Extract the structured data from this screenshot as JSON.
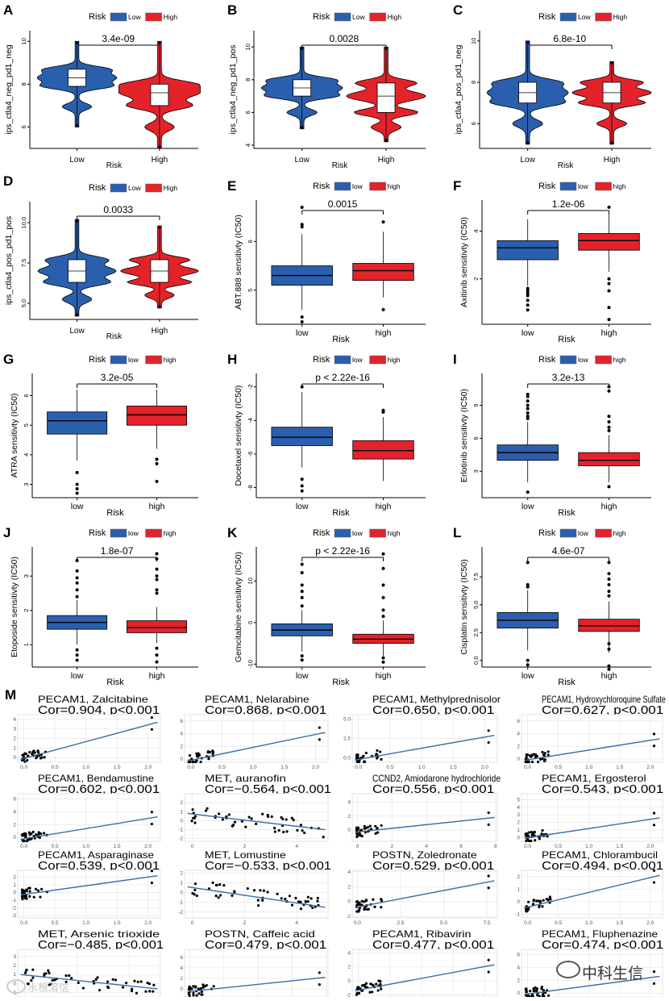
{
  "colors": {
    "low": "#2a5fae",
    "high": "#e3222a",
    "fit": "#3a6ea5",
    "grid": "#e6e6e6",
    "point": "#000000"
  },
  "watermarks": {
    "right": "中科生信",
    "left": "水根溶信"
  },
  "m_label": "M",
  "violin_panels": [
    {
      "letter": "A",
      "legend_title": "Risk",
      "legend_items": [
        "Low",
        "High"
      ],
      "ylabel": "ips_ctla4_neg_pd1_neg",
      "xlabel": "Risk",
      "categories": [
        "Low",
        "High"
      ],
      "pvalue": "3.4e-09",
      "ylim": [
        5,
        10.5
      ],
      "yticks": [
        "6",
        "8",
        "10"
      ],
      "groups": [
        {
          "median": 8.3,
          "q1": 7.9,
          "q3": 8.7,
          "min": 6.0,
          "max": 10.0
        },
        {
          "median": 7.6,
          "q1": 7.0,
          "q3": 8.0,
          "min": 5.0,
          "max": 10.0
        }
      ]
    },
    {
      "letter": "B",
      "legend_title": "Risk",
      "legend_items": [
        "Low",
        "High"
      ],
      "ylabel": "ips_ctla4_neg_pd1_pos",
      "xlabel": "Risk",
      "categories": [
        "Low",
        "High"
      ],
      "pvalue": "0.0028",
      "ylim": [
        3.8,
        11
      ],
      "yticks": [
        "4",
        "6",
        "8",
        "10"
      ],
      "groups": [
        {
          "median": 7.5,
          "q1": 7.0,
          "q3": 8.0,
          "min": 5.0,
          "max": 10.0
        },
        {
          "median": 7.0,
          "q1": 6.0,
          "q3": 7.8,
          "min": 4.2,
          "max": 10.0
        }
      ]
    },
    {
      "letter": "C",
      "legend_title": "Risk",
      "legend_items": [
        "Low",
        "High"
      ],
      "ylabel": "ips_ctla4_pos_pd1_neg",
      "xlabel": "Risk",
      "categories": [
        "Low",
        "High"
      ],
      "pvalue": "6.8e-10",
      "ylim": [
        4.8,
        10.5
      ],
      "yticks": [
        "6",
        "8",
        "10"
      ],
      "groups": [
        {
          "median": 7.5,
          "q1": 7.0,
          "q3": 8.0,
          "min": 5.0,
          "max": 10.0
        },
        {
          "median": 7.5,
          "q1": 7.0,
          "q3": 8.0,
          "min": 5.0,
          "max": 9.0
        }
      ]
    },
    {
      "letter": "D",
      "legend_title": "Risk",
      "legend_items": [
        "Low",
        "High"
      ],
      "ylabel": "ips_ctla4_pos_pd1_pos",
      "xlabel": "Risk",
      "categories": [
        "Low",
        "High"
      ],
      "pvalue": "0.0033",
      "ylim": [
        4.0,
        11.3
      ],
      "yticks": [
        "5.0",
        "7.5",
        "10.0"
      ],
      "groups": [
        {
          "median": 7.0,
          "q1": 6.3,
          "q3": 7.7,
          "min": 4.2,
          "max": 10.2
        },
        {
          "median": 7.0,
          "q1": 6.3,
          "q3": 7.7,
          "min": 4.7,
          "max": 9.8
        }
      ]
    }
  ],
  "box_panels": [
    {
      "letter": "E",
      "legend_title": "Risk",
      "legend_items": [
        "low",
        "high"
      ],
      "ylabel": "ABT.888 sensitivty (IC50)",
      "xlabel": "Risk",
      "categories": [
        "low",
        "high"
      ],
      "pvalue": "0.0015",
      "ylim": [
        4.3,
        6.85
      ],
      "yticks": [
        5,
        6
      ],
      "groups": [
        {
          "min": 4.6,
          "q1": 5.1,
          "median": 5.3,
          "q3": 5.5,
          "max": 6.15,
          "outliers": [
            4.35,
            4.45,
            6.3,
            6.35,
            6.7
          ]
        },
        {
          "min": 4.85,
          "q1": 5.2,
          "median": 5.4,
          "q3": 5.55,
          "max": 6.2,
          "outliers": [
            4.6,
            6.4
          ]
        }
      ]
    },
    {
      "letter": "F",
      "legend_title": "Risk",
      "legend_items": [
        "low",
        "high"
      ],
      "ylabel": "Axitinib sensitivty (IC50)",
      "xlabel": "Risk",
      "categories": [
        "low",
        "high"
      ],
      "pvalue": "1.2e-06",
      "ylim": [
        0.1,
        5.3
      ],
      "yticks": [
        2,
        4
      ],
      "groups": [
        {
          "min": 1.7,
          "q1": 2.8,
          "median": 3.3,
          "q3": 3.6,
          "max": 4.5,
          "outliers": [
            0.7,
            0.9,
            1.1,
            1.3,
            1.4,
            1.5,
            1.6
          ]
        },
        {
          "min": 2.3,
          "q1": 3.2,
          "median": 3.6,
          "q3": 3.9,
          "max": 4.7,
          "outliers": [
            0.3,
            0.8,
            1.5,
            1.8,
            2.0,
            5.0
          ]
        }
      ]
    },
    {
      "letter": "G",
      "legend_title": "Risk",
      "legend_items": [
        "low",
        "high"
      ],
      "ylabel": "ATRA sensitivty (IC50)",
      "xlabel": "Risk",
      "categories": [
        "low",
        "high"
      ],
      "pvalue": "3.2e-05",
      "ylim": [
        2.55,
        6.75
      ],
      "yticks": [
        3,
        4,
        5,
        6
      ],
      "groups": [
        {
          "min": 3.8,
          "q1": 4.7,
          "median": 5.15,
          "q3": 5.45,
          "max": 6.2,
          "outliers": [
            2.7,
            2.85,
            3.0,
            3.4
          ]
        },
        {
          "min": 4.2,
          "q1": 5.0,
          "median": 5.35,
          "q3": 5.65,
          "max": 6.2,
          "outliers": [
            3.1,
            3.7,
            3.85
          ]
        }
      ]
    },
    {
      "letter": "H",
      "legend_title": "Risk",
      "legend_items": [
        "low",
        "high"
      ],
      "ylabel": "Docetaxel sensitivty (IC50)",
      "xlabel": "Risk",
      "categories": [
        "low",
        "high"
      ],
      "pvalue": "p < 2.22e-16",
      "ylim": [
        -8.6,
        -1.2
      ],
      "yticks": [
        -8,
        -6,
        -4,
        -2
      ],
      "groups": [
        {
          "min": -6.8,
          "q1": -5.5,
          "median": -5.0,
          "q3": -4.4,
          "max": -2.3,
          "outliers": [
            -7.5,
            -7.9,
            -8.2,
            -2.0
          ]
        },
        {
          "min": -7.6,
          "q1": -6.3,
          "median": -5.8,
          "q3": -5.2,
          "max": -3.8,
          "outliers": [
            -3.5,
            -3.4
          ]
        }
      ]
    },
    {
      "letter": "I",
      "legend_title": "Risk",
      "legend_items": [
        "low",
        "high"
      ],
      "ylabel": "Erlotinib sensitivty (IC50)",
      "xlabel": "Risk",
      "categories": [
        "low",
        "high"
      ],
      "pvalue": "3.2e-13",
      "ylim": [
        0.6,
        11.9
      ],
      "yticks": [
        3,
        6,
        9
      ],
      "groups": [
        {
          "min": 2.0,
          "q1": 4.0,
          "median": 4.7,
          "q3": 5.4,
          "max": 7.5,
          "outliers": [
            1.1,
            7.8,
            8.0,
            8.3,
            8.7,
            9.0,
            9.4,
            9.8,
            10.0
          ]
        },
        {
          "min": 2.0,
          "q1": 3.5,
          "median": 4.0,
          "q3": 4.7,
          "max": 6.3,
          "outliers": [
            1.6,
            6.7,
            7.0,
            7.5,
            8.0,
            10.3,
            10.7
          ]
        }
      ]
    },
    {
      "letter": "J",
      "legend_title": "Risk",
      "legend_items": [
        "low",
        "high"
      ],
      "ylabel": "Etoposide sensitivty (IC50)",
      "xlabel": "Risk",
      "categories": [
        "low",
        "high"
      ],
      "pvalue": "1.8e-07",
      "ylim": [
        0.35,
        3.85
      ],
      "yticks": [
        1,
        2,
        3
      ],
      "groups": [
        {
          "min": 1.0,
          "q1": 1.45,
          "median": 1.65,
          "q3": 1.85,
          "max": 2.3,
          "outliers": [
            0.55,
            0.7,
            0.85,
            2.4,
            2.6,
            2.8,
            2.95,
            3.15,
            3.45
          ]
        },
        {
          "min": 1.05,
          "q1": 1.35,
          "median": 1.5,
          "q3": 1.7,
          "max": 2.1,
          "outliers": [
            0.5,
            0.7,
            0.9,
            2.5,
            2.6,
            2.9,
            3.0,
            3.2,
            3.5,
            3.65
          ]
        }
      ]
    },
    {
      "letter": "K",
      "legend_title": "Risk",
      "legend_items": [
        "low",
        "high"
      ],
      "ylabel": "Gemcitabine sensitivty (IC50)",
      "xlabel": "Risk",
      "categories": [
        "low",
        "high"
      ],
      "pvalue": "p < 2.22e-16",
      "ylim": [
        -10.7,
        18.2
      ],
      "yticks": [
        -10,
        0,
        10
      ],
      "groups": [
        {
          "min": -7.0,
          "q1": -3.2,
          "median": -1.8,
          "q3": -0.3,
          "max": 3.0,
          "outliers": [
            -9.0,
            -8.0,
            4.0,
            6.0,
            7.5,
            9.0,
            12.0,
            14.0
          ]
        },
        {
          "min": -8.0,
          "q1": -5.0,
          "median": -4.0,
          "q3": -2.8,
          "max": 0.5,
          "outliers": [
            -9.5,
            -8.5,
            1.5,
            3.0,
            6.0,
            9.0,
            13.0,
            16.5
          ]
        }
      ]
    },
    {
      "letter": "L",
      "legend_title": "Risk",
      "legend_items": [
        "low",
        "high"
      ],
      "ylabel": "Cisplatin sensitivty (IC50)",
      "xlabel": "Risk",
      "categories": [
        "low",
        "high"
      ],
      "pvalue": "4.6e-07",
      "ylim": [
        -0.6,
        10.2
      ],
      "yticks": [
        "0.0",
        "2.5",
        "5.0",
        "7.5"
      ],
      "groups": [
        {
          "min": 0.9,
          "q1": 2.9,
          "median": 3.6,
          "q3": 4.3,
          "max": 6.3,
          "outliers": [
            -0.4,
            0.0,
            6.6,
            6.8,
            8.8
          ]
        },
        {
          "min": 0.7,
          "q1": 2.6,
          "median": 3.1,
          "q3": 3.7,
          "max": 5.3,
          "outliers": [
            -0.8,
            -0.5,
            1.0,
            1.5,
            5.8,
            6.2,
            6.8,
            7.3,
            7.8,
            8.8
          ]
        }
      ]
    }
  ],
  "scatter_panels": [
    {
      "title": "PECAM1, Zalcitabine",
      "cor": "Cor=0.904, p<0.001",
      "xlim": [
        -0.1,
        2.2
      ],
      "ylim": [
        -0.5,
        4.5
      ],
      "xticks": [
        "0.0",
        "0.5",
        "1.0",
        "1.5",
        "2.0"
      ],
      "yticks": [
        "0",
        "1",
        "2",
        "3",
        "4"
      ],
      "fit": [
        -0.2,
        3.7
      ]
    },
    {
      "title": "PECAM1, Nelarabine",
      "cor": "Cor=0.868, p<0.001",
      "xlim": [
        -0.1,
        2.2
      ],
      "ylim": [
        -0.5,
        7
      ],
      "xticks": [
        "0.0",
        "0.5",
        "1.0",
        "1.5",
        "2.0"
      ],
      "yticks": [
        "0",
        "2",
        "4",
        "6"
      ],
      "fit": [
        -0.3,
        4.2
      ]
    },
    {
      "title": "PECAM1, Methylprednisolor",
      "cor": "Cor=0.650, p<0.001",
      "xlim": [
        -0.1,
        2.2
      ],
      "ylim": [
        -0.6,
        5.6
      ],
      "xticks": [
        "0.0",
        "0.5",
        "1.0",
        "1.5",
        "2.0"
      ],
      "yticks": [
        "0.0",
        "2.5",
        "5.0"
      ],
      "fit": [
        -0.3,
        2.9
      ]
    },
    {
      "title": "PECAM1, Hydroxychloroquine Sulfate",
      "cor": "Cor=0.627, p<0.001",
      "xlim": [
        -0.1,
        2.2
      ],
      "ylim": [
        -0.5,
        7
      ],
      "xticks": [
        "0.0",
        "0.5",
        "1.0",
        "1.5",
        "2.0"
      ],
      "yticks": [
        "0",
        "2",
        "4",
        "6"
      ],
      "fit": [
        -0.2,
        3.2
      ]
    },
    {
      "title": "PECAM1, Bendamustine",
      "cor": "Cor=0.602, p<0.001",
      "xlim": [
        -0.1,
        2.2
      ],
      "ylim": [
        -0.6,
        6.8
      ],
      "xticks": [
        "0.0",
        "0.5",
        "1.0",
        "1.5",
        "2.0"
      ],
      "yticks": [
        "0",
        "2",
        "4",
        "6"
      ],
      "fit": [
        -0.3,
        3.2
      ]
    },
    {
      "title": "MET, auranofin",
      "cor": "Cor=−0.564, p<0.001",
      "xlim": [
        -0.3,
        5.2
      ],
      "ylim": [
        -2.3,
        3.0
      ],
      "xticks": [
        "0",
        "2",
        "4"
      ],
      "yticks": [
        "-2",
        "-1",
        "0",
        "1",
        "2"
      ],
      "fit": [
        0.8,
        -1.0
      ]
    },
    {
      "title": "CCND2, Amiodarone hydrochloride",
      "cor": "Cor=0.556, p<0.001",
      "xlim": [
        -0.3,
        8.1
      ],
      "ylim": [
        -1.6,
        5.2
      ],
      "xticks": [
        "0",
        "2",
        "4",
        "6",
        "8"
      ],
      "yticks": [
        "0",
        "2",
        "4"
      ],
      "fit": [
        -0.3,
        1.8
      ]
    },
    {
      "title": "PECAM1, Ergosterol",
      "cor": "Cor=0.543, p<0.001",
      "xlim": [
        -0.1,
        2.2
      ],
      "ylim": [
        -0.5,
        5.8
      ],
      "xticks": [
        "0.0",
        "0.5",
        "1.0",
        "1.5",
        "2.0"
      ],
      "yticks": [
        "0",
        "1",
        "2",
        "3",
        "4",
        "5"
      ],
      "fit": [
        -0.1,
        2.6
      ]
    },
    {
      "title": "PECAM1, Asparaginase",
      "cor": "Cor=0.539, p<0.001",
      "xlim": [
        -0.1,
        2.2
      ],
      "ylim": [
        -3.3,
        2.9
      ],
      "xticks": [
        "0.0",
        "0.5",
        "1.0",
        "1.5",
        "2.0"
      ],
      "yticks": [
        "-3",
        "-2",
        "-1",
        "0",
        "1",
        "2"
      ],
      "fit": [
        -0.3,
        2.2
      ]
    },
    {
      "title": "MET, Lomustine",
      "cor": "Cor=−0.533, p<0.001",
      "xlim": [
        -0.3,
        5.2
      ],
      "ylim": [
        -2.6,
        2.3
      ],
      "xticks": [
        "0",
        "2",
        "4"
      ],
      "yticks": [
        "-2",
        "-1",
        "0",
        "1",
        "2"
      ],
      "fit": [
        0.6,
        -1.5
      ]
    },
    {
      "title": "POSTN, Zoledronate",
      "cor": "Cor=0.529, p<0.001",
      "xlim": [
        -0.3,
        8.1
      ],
      "ylim": [
        -2.2,
        4.2
      ],
      "xticks": [
        "0.0",
        "2.5",
        "5.0",
        "7.5"
      ],
      "yticks": [
        "-2",
        "0",
        "2",
        "4"
      ],
      "fit": [
        -0.8,
        2.8
      ]
    },
    {
      "title": "PECAM1, Chlorambucil",
      "cor": "Cor=0.494, p<0.001",
      "xlim": [
        -0.1,
        2.2
      ],
      "ylim": [
        -1.3,
        2.5
      ],
      "xticks": [
        "0.0",
        "0.5",
        "1.0",
        "1.5",
        "2.0"
      ],
      "yticks": [
        "-1",
        "0",
        "1",
        "2"
      ],
      "fit": [
        -0.5,
        2.1
      ]
    },
    {
      "title": "MET, Arsenic trioxide",
      "cor": "Cor=−0.485, p<0.001",
      "xlim": [
        -0.3,
        5.2
      ],
      "ylim": [
        -1.5,
        3.8
      ],
      "xticks": [
        "0",
        "2",
        "4"
      ],
      "yticks": [
        "-1",
        "0",
        "1",
        "2",
        "3"
      ],
      "fit": [
        1.0,
        -0.6
      ]
    },
    {
      "title": "POSTN, Caffeic acid",
      "cor": "Cor=0.479, p<0.001",
      "xlim": [
        -0.3,
        8.1
      ],
      "ylim": [
        -1.5,
        7.5
      ],
      "xticks": [
        "0",
        "2",
        "4",
        "6",
        "8"
      ],
      "yticks": [
        "0",
        "2",
        "4",
        "6"
      ],
      "fit": [
        -0.5,
        2.2
      ]
    },
    {
      "title": "PECAM1, Ribavirin",
      "cor": "Cor=0.477, p<0.001",
      "xlim": [
        -0.1,
        2.2
      ],
      "ylim": [
        -2.3,
        4.5
      ],
      "xticks": [
        "0.0",
        "0.5",
        "1.0",
        "1.5",
        "2.0"
      ],
      "yticks": [
        "-2",
        "0",
        "2",
        "4"
      ],
      "fit": [
        -1.4,
        2.3
      ]
    },
    {
      "title": "PECAM1, Fluphenazine",
      "cor": "Cor=0.474, p<0.001",
      "xlim": [
        -0.1,
        2.2
      ],
      "ylim": [
        -0.6,
        6.8
      ],
      "xticks": [
        "0.0",
        "0.5",
        "1.0",
        "1.5",
        "2.0"
      ],
      "yticks": [
        "0",
        "2",
        "4",
        "6"
      ],
      "fit": [
        -0.2,
        2.6
      ]
    }
  ]
}
